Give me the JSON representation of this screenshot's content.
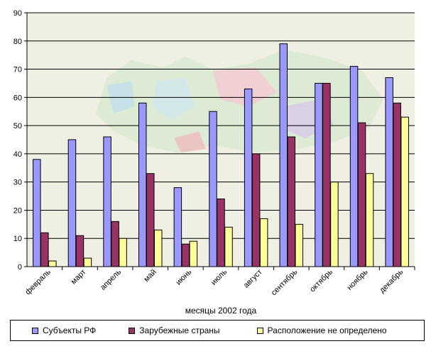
{
  "chart_data": {
    "type": "bar",
    "categories": [
      "февраль",
      "март",
      "апрель",
      "май",
      "июнь",
      "июль",
      "август",
      "сентябрь",
      "октябрь",
      "ноябрь",
      "декабрь"
    ],
    "series": [
      {
        "name": "Субъекты РФ",
        "color": "#9999ff",
        "values": [
          38,
          45,
          46,
          58,
          28,
          55,
          63,
          79,
          65,
          71,
          67
        ]
      },
      {
        "name": "Зарубежные страны",
        "color": "#993366",
        "values": [
          12,
          11,
          16,
          33,
          8,
          24,
          40,
          46,
          65,
          51,
          58
        ]
      },
      {
        "name": "Расположение не определено",
        "color": "#ffff99",
        "values": [
          2,
          3,
          10,
          13,
          9,
          14,
          17,
          15,
          30,
          33,
          53
        ]
      }
    ],
    "xlabel": "месяцы 2002 года",
    "ylabel": "",
    "ylim": [
      0,
      90
    ],
    "yticks": [
      0,
      10,
      20,
      30,
      40,
      50,
      60,
      70,
      80,
      90
    ],
    "grid": true,
    "legend_position": "bottom",
    "plot_background": "#efefe3"
  }
}
